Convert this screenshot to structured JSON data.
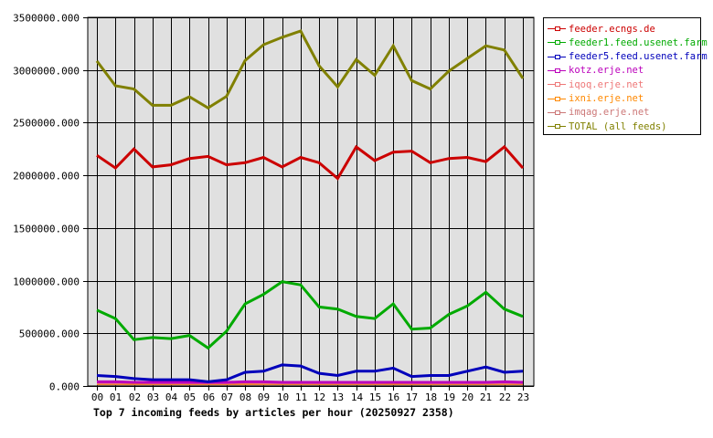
{
  "chart_data": {
    "type": "line",
    "title": "Top 7 incoming feeds by articles per hour (20250927 2358)",
    "xlabel": "",
    "ylabel": "",
    "ylim": [
      0,
      3500000
    ],
    "grid": true,
    "legend_position": "right",
    "categories": [
      "00",
      "01",
      "02",
      "03",
      "04",
      "05",
      "06",
      "07",
      "08",
      "09",
      "10",
      "11",
      "12",
      "13",
      "14",
      "15",
      "16",
      "17",
      "18",
      "19",
      "20",
      "21",
      "22",
      "23"
    ],
    "y_ticks": [
      "0.000",
      "500000.000",
      "1000000.000",
      "1500000.000",
      "2000000.000",
      "2500000.000",
      "3000000.000",
      "3500000.000"
    ],
    "series": [
      {
        "name": "feeder.ecngs.de",
        "color": "#cc0000",
        "values": [
          2190000,
          2070000,
          2250000,
          2080000,
          2100000,
          2160000,
          2180000,
          2100000,
          2120000,
          2170000,
          2080000,
          2170000,
          2120000,
          1970000,
          2270000,
          2140000,
          2220000,
          2230000,
          2120000,
          2160000,
          2170000,
          2130000,
          2270000,
          2070000
        ]
      },
      {
        "name": "feeder1.feed.usenet.farm",
        "color": "#00aa00",
        "values": [
          720000,
          640000,
          440000,
          460000,
          450000,
          480000,
          360000,
          520000,
          780000,
          870000,
          990000,
          960000,
          750000,
          730000,
          660000,
          640000,
          780000,
          540000,
          550000,
          680000,
          760000,
          890000,
          730000,
          660000
        ]
      },
      {
        "name": "feeder5.feed.usenet.farm",
        "color": "#0000bb",
        "values": [
          100000,
          90000,
          70000,
          60000,
          60000,
          60000,
          40000,
          60000,
          130000,
          140000,
          200000,
          190000,
          120000,
          100000,
          140000,
          140000,
          170000,
          90000,
          100000,
          100000,
          140000,
          180000,
          130000,
          140000
        ]
      },
      {
        "name": "kotz.erje.net",
        "color": "#bb00bb",
        "values": [
          40000,
          40000,
          35000,
          35000,
          35000,
          35000,
          35000,
          35000,
          40000,
          40000,
          35000,
          35000,
          35000,
          35000,
          35000,
          35000,
          35000,
          35000,
          35000,
          35000,
          35000,
          35000,
          40000,
          35000
        ]
      },
      {
        "name": "iqoq.erje.net",
        "color": "#ee7777",
        "values": [
          30000,
          30000,
          35000,
          30000,
          30000,
          30000,
          30000,
          30000,
          35000,
          30000,
          30000,
          30000,
          30000,
          30000,
          30000,
          30000,
          35000,
          30000,
          30000,
          30000,
          30000,
          30000,
          30000,
          30000
        ]
      },
      {
        "name": "ixni.erje.net",
        "color": "#ff8800",
        "values": [
          25000,
          25000,
          25000,
          25000,
          25000,
          25000,
          25000,
          25000,
          25000,
          25000,
          25000,
          25000,
          25000,
          25000,
          25000,
          25000,
          25000,
          25000,
          25000,
          25000,
          25000,
          25000,
          25000,
          25000
        ]
      },
      {
        "name": "imqag.erje.net",
        "color": "#cc7777",
        "values": [
          20000,
          20000,
          20000,
          20000,
          20000,
          20000,
          20000,
          20000,
          20000,
          20000,
          20000,
          20000,
          20000,
          20000,
          20000,
          20000,
          20000,
          20000,
          20000,
          20000,
          20000,
          20000,
          20000,
          20000
        ]
      },
      {
        "name": "TOTAL (all feeds)",
        "color": "#808000",
        "values": [
          3085000,
          2850000,
          2820000,
          2665000,
          2665000,
          2745000,
          2640000,
          2750000,
          3090000,
          3240000,
          3310000,
          3370000,
          3040000,
          2840000,
          3100000,
          2950000,
          3230000,
          2900000,
          2820000,
          2990000,
          3110000,
          3230000,
          3190000,
          2920000
        ]
      }
    ]
  },
  "legend": {
    "items": [
      {
        "label": "feeder.ecngs.de",
        "color": "#cc0000"
      },
      {
        "label": "feeder1.feed.usenet.farm",
        "color": "#00aa00"
      },
      {
        "label": "feeder5.feed.usenet.farm",
        "color": "#0000bb"
      },
      {
        "label": "kotz.erje.net",
        "color": "#bb00bb"
      },
      {
        "label": "iqoq.erje.net",
        "color": "#ee7777"
      },
      {
        "label": "ixni.erje.net",
        "color": "#ff8800"
      },
      {
        "label": "imqag.erje.net",
        "color": "#cc7777"
      },
      {
        "label": "TOTAL (all feeds)",
        "color": "#808000"
      }
    ]
  },
  "style": {
    "plot_bg": "#e0e0e0",
    "grid_color": "#000000"
  }
}
